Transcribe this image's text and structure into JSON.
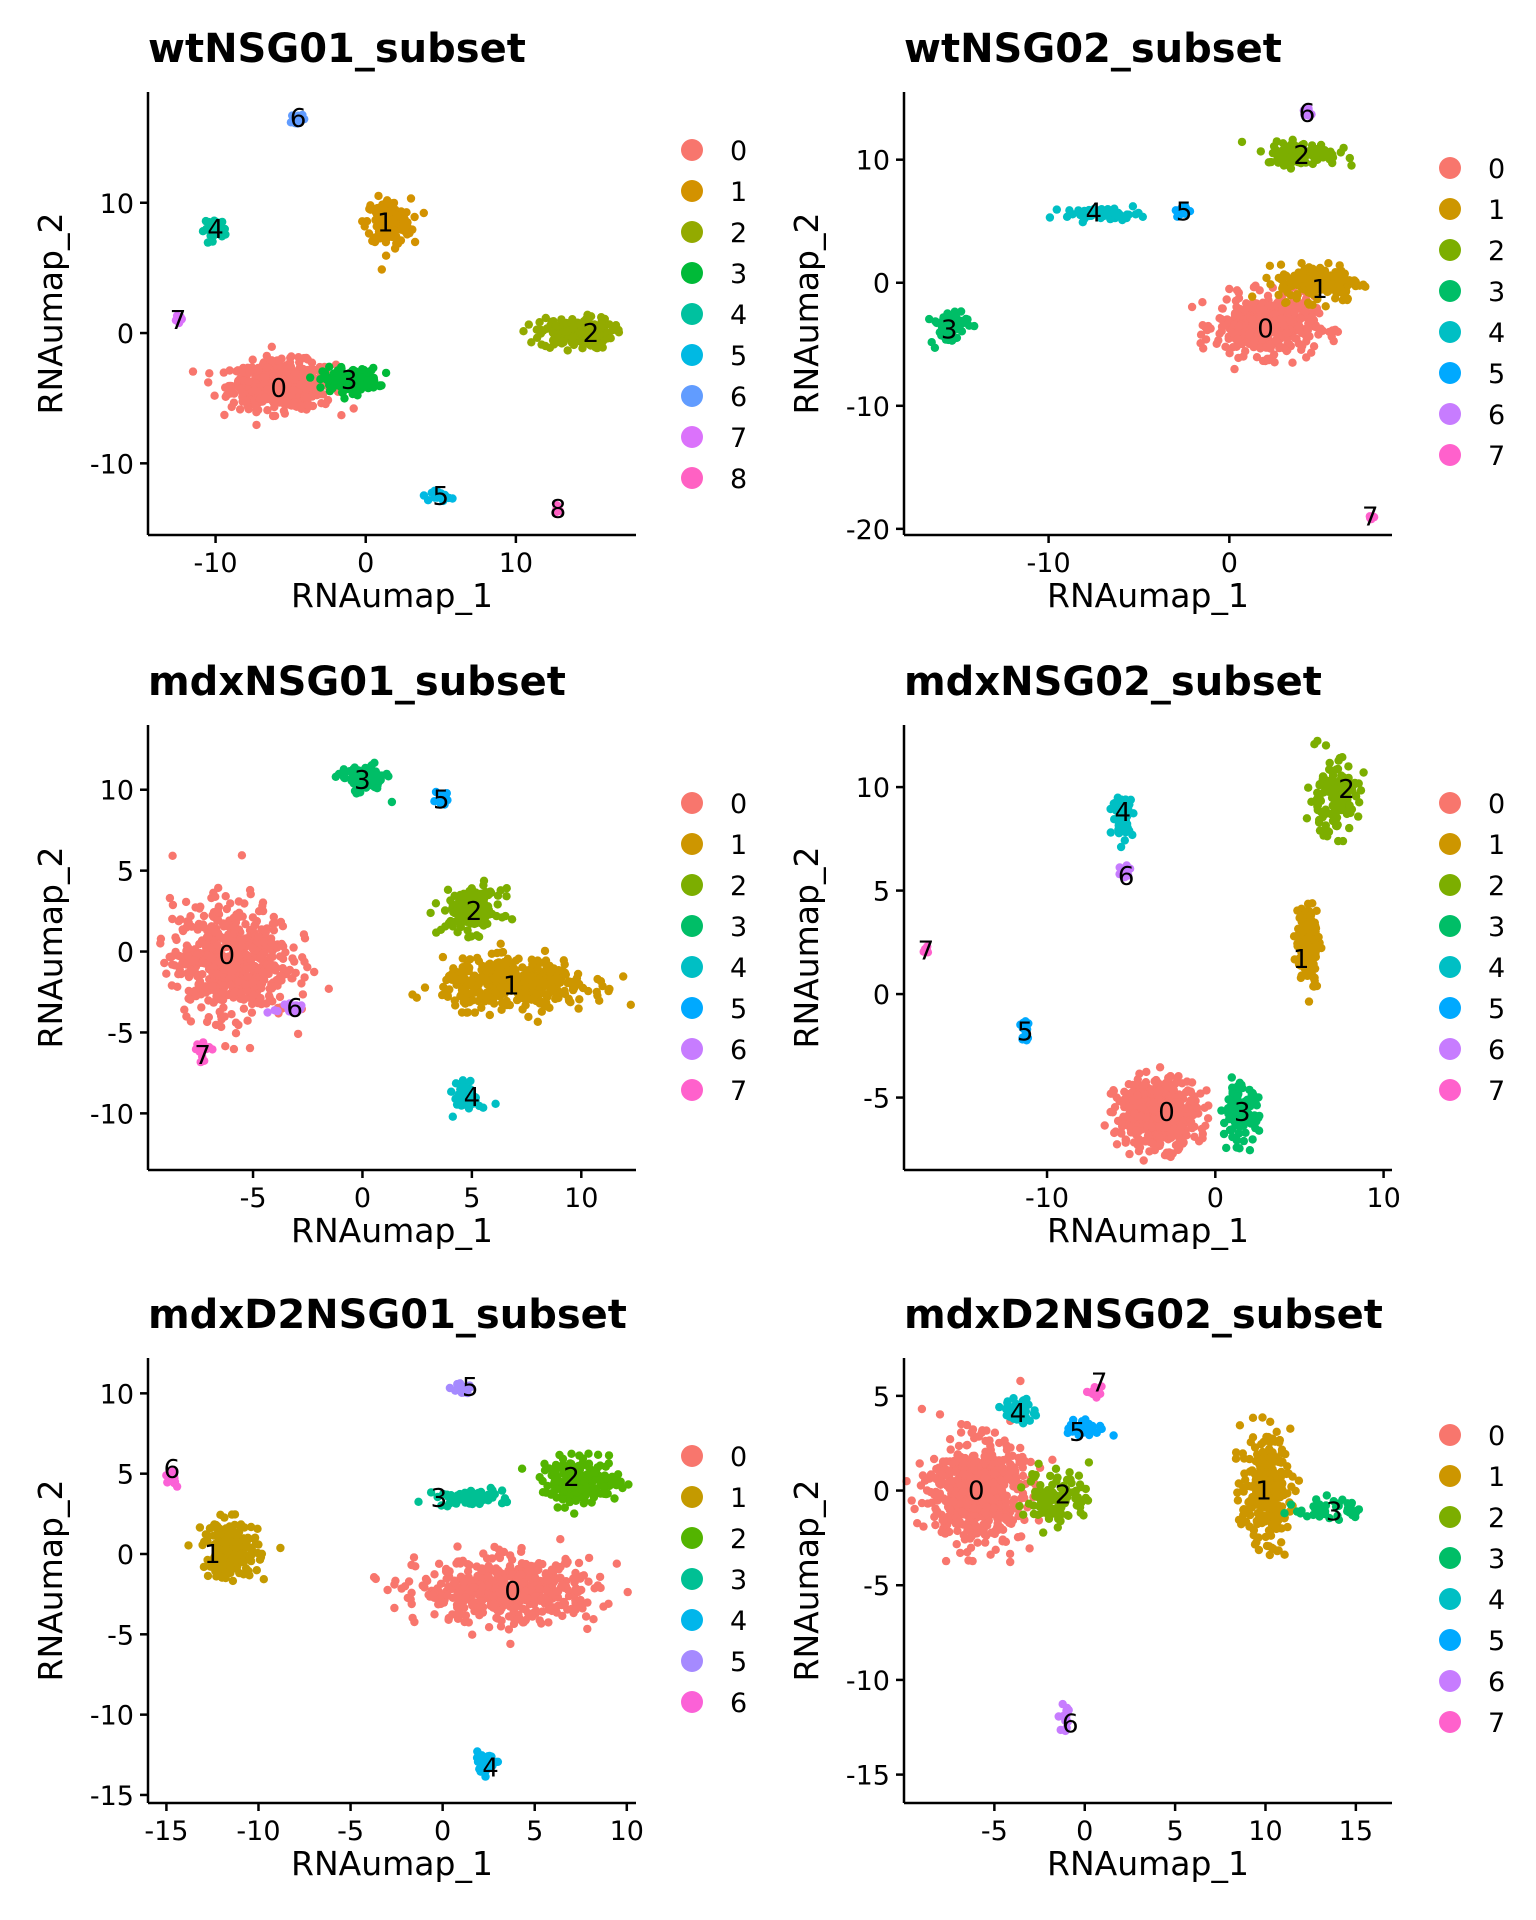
{
  "palette": {
    "c0": "#F8766D",
    "c1": "#CD9600",
    "c2": "#7CAE00",
    "c3": "#00BE67",
    "c4": "#00BFC4",
    "c5": "#00A9FF",
    "c6": "#C77CFF",
    "c7": "#FF61CC"
  },
  "chart_data": [
    {
      "type": "scatter",
      "title": "wtNSG01_subset",
      "xlabel": "RNAumap_1",
      "ylabel": "RNAumap_2",
      "xlim": [
        -14.5,
        18
      ],
      "ylim": [
        -15.5,
        18.5
      ],
      "xticks": [
        -10,
        0,
        10
      ],
      "yticks": [
        -10,
        0,
        10
      ],
      "legend": [
        "0",
        "1",
        "2",
        "3",
        "4",
        "5",
        "6",
        "7",
        "8"
      ],
      "legend_colors": [
        "#F8766D",
        "#D39200",
        "#93AA00",
        "#00BA38",
        "#00C19F",
        "#00B9E3",
        "#619CFF",
        "#DB72FB",
        "#FF61C3"
      ],
      "clusters": [
        {
          "label": "0",
          "x": -5.5,
          "y": -4,
          "sx": 2.3,
          "sy": 1.2,
          "n": 520,
          "cx": -5.8,
          "cy": -4.2
        },
        {
          "label": "1",
          "x": 1.5,
          "y": 8.5,
          "sx": 1.0,
          "sy": 1.2,
          "n": 160,
          "cx": 1.3,
          "cy": 8.5
        },
        {
          "label": "2",
          "x": 14,
          "y": 0,
          "sx": 1.6,
          "sy": 0.8,
          "n": 180,
          "cx": 15,
          "cy": 0
        },
        {
          "label": "3",
          "x": -1,
          "y": -3.6,
          "sx": 1.2,
          "sy": 0.6,
          "n": 160,
          "cx": -1.1,
          "cy": -3.6
        },
        {
          "label": "4",
          "x": -10,
          "y": 8,
          "sx": 0.5,
          "sy": 0.5,
          "n": 40,
          "cx": -10,
          "cy": 8
        },
        {
          "label": "5",
          "x": 5,
          "y": -12.5,
          "sx": 0.4,
          "sy": 0.25,
          "n": 30,
          "cx": 5,
          "cy": -12.5
        },
        {
          "label": "6",
          "x": -4.5,
          "y": 16.5,
          "sx": 0.3,
          "sy": 0.25,
          "n": 14,
          "cx": -4.5,
          "cy": 16.5
        },
        {
          "label": "7",
          "x": -12.5,
          "y": 1,
          "sx": 0.2,
          "sy": 0.2,
          "n": 10,
          "cx": -12.5,
          "cy": 1
        },
        {
          "label": "8",
          "x": 12.8,
          "y": -13.5,
          "sx": 0.2,
          "sy": 0.2,
          "n": 8,
          "cx": 12.8,
          "cy": -13.5
        }
      ]
    },
    {
      "type": "scatter",
      "title": "wtNSG02_subset",
      "xlabel": "RNAumap_1",
      "ylabel": "RNAumap_2",
      "xlim": [
        -18,
        9
      ],
      "ylim": [
        -20.5,
        15.5
      ],
      "xticks": [
        -10,
        0
      ],
      "yticks": [
        -20,
        -10,
        0,
        10
      ],
      "legend": [
        "0",
        "1",
        "2",
        "3",
        "4",
        "5",
        "6",
        "7"
      ],
      "clusters": [
        {
          "label": "0",
          "x": 2,
          "y": -3.5,
          "sx": 1.8,
          "sy": 1.6,
          "n": 480,
          "cx": 2,
          "cy": -3.7
        },
        {
          "label": "1",
          "x": 5,
          "y": 0,
          "sx": 1.5,
          "sy": 1.0,
          "n": 180,
          "cx": 5,
          "cy": -0.5
        },
        {
          "label": "2",
          "x": 4,
          "y": 10.5,
          "sx": 1.3,
          "sy": 0.6,
          "n": 130,
          "cx": 4,
          "cy": 10.4
        },
        {
          "label": "3",
          "x": -15.5,
          "y": -3.5,
          "sx": 0.7,
          "sy": 1.0,
          "n": 60,
          "cx": -15.5,
          "cy": -3.8
        },
        {
          "label": "4",
          "x": -7,
          "y": 5.6,
          "sx": 1.4,
          "sy": 0.3,
          "n": 60,
          "cx": -7.5,
          "cy": 5.7
        },
        {
          "label": "5",
          "x": -2.5,
          "y": 5.8,
          "sx": 0.25,
          "sy": 0.35,
          "n": 20,
          "cx": -2.5,
          "cy": 5.8
        },
        {
          "label": "6",
          "x": 4.3,
          "y": 13.8,
          "sx": 0.2,
          "sy": 0.25,
          "n": 10,
          "cx": 4.3,
          "cy": 13.8
        },
        {
          "label": "7",
          "x": 7.8,
          "y": -19,
          "sx": 0.15,
          "sy": 0.15,
          "n": 8,
          "cx": 7.8,
          "cy": -19
        }
      ]
    },
    {
      "type": "scatter",
      "title": "mdxNSG01_subset",
      "xlabel": "RNAumap_1",
      "ylabel": "RNAumap_2",
      "xlim": [
        -9.8,
        12.5
      ],
      "ylim": [
        -13.5,
        14
      ],
      "xticks": [
        -5,
        0,
        5,
        10
      ],
      "yticks": [
        -10,
        -5,
        0,
        5,
        10
      ],
      "legend": [
        "0",
        "1",
        "2",
        "3",
        "4",
        "5",
        "6",
        "7"
      ],
      "clusters": [
        {
          "label": "0",
          "x": -6,
          "y": -0.5,
          "sx": 1.8,
          "sy": 2.4,
          "n": 560,
          "cx": -6.2,
          "cy": -0.2
        },
        {
          "label": "1",
          "x": 7,
          "y": -2,
          "sx": 2.2,
          "sy": 1.0,
          "n": 420,
          "cx": 6.8,
          "cy": -2.1
        },
        {
          "label": "2",
          "x": 5,
          "y": 2.5,
          "sx": 0.9,
          "sy": 0.9,
          "n": 150,
          "cx": 5.1,
          "cy": 2.5
        },
        {
          "label": "3",
          "x": 0,
          "y": 10.6,
          "sx": 0.7,
          "sy": 0.6,
          "n": 80,
          "cx": 0,
          "cy": 10.6
        },
        {
          "label": "4",
          "x": 4.8,
          "y": -9,
          "sx": 0.4,
          "sy": 0.6,
          "n": 50,
          "cx": 5,
          "cy": -9
        },
        {
          "label": "5",
          "x": 3.7,
          "y": 9.5,
          "sx": 0.2,
          "sy": 0.3,
          "n": 16,
          "cx": 3.6,
          "cy": 9.4
        },
        {
          "label": "6",
          "x": -3.3,
          "y": -3.5,
          "sx": 0.5,
          "sy": 0.3,
          "n": 30,
          "cx": -3.1,
          "cy": -3.5
        },
        {
          "label": "7",
          "x": -7.3,
          "y": -6.2,
          "sx": 0.3,
          "sy": 0.3,
          "n": 14,
          "cx": -7.3,
          "cy": -6.4
        }
      ]
    },
    {
      "type": "scatter",
      "title": "mdxNSG02_subset",
      "xlabel": "RNAumap_1",
      "ylabel": "RNAumap_2",
      "xlim": [
        -18.5,
        10.5
      ],
      "ylim": [
        -8.5,
        13
      ],
      "xticks": [
        -10,
        0,
        10
      ],
      "yticks": [
        -5,
        0,
        5,
        10
      ],
      "legend": [
        "0",
        "1",
        "2",
        "3",
        "4",
        "5",
        "6",
        "7"
      ],
      "clusters": [
        {
          "label": "0",
          "x": -3.5,
          "y": -5.8,
          "sx": 1.6,
          "sy": 1.1,
          "n": 480,
          "cx": -2.9,
          "cy": -5.7
        },
        {
          "label": "1",
          "x": 5.5,
          "y": 2.5,
          "sx": 0.45,
          "sy": 1.3,
          "n": 130,
          "cx": 5.1,
          "cy": 1.7
        },
        {
          "label": "2",
          "x": 7,
          "y": 9.5,
          "sx": 1.0,
          "sy": 1.2,
          "n": 140,
          "cx": 7.8,
          "cy": 9.9
        },
        {
          "label": "3",
          "x": 1.5,
          "y": -5.8,
          "sx": 0.7,
          "sy": 0.9,
          "n": 110,
          "cx": 1.6,
          "cy": -5.7
        },
        {
          "label": "4",
          "x": -5.5,
          "y": 8.6,
          "sx": 0.4,
          "sy": 0.6,
          "n": 60,
          "cx": -5.5,
          "cy": 8.8
        },
        {
          "label": "5",
          "x": -11.3,
          "y": -1.8,
          "sx": 0.2,
          "sy": 0.5,
          "n": 24,
          "cx": -11.3,
          "cy": -1.8
        },
        {
          "label": "6",
          "x": -5.3,
          "y": 5.9,
          "sx": 0.3,
          "sy": 0.3,
          "n": 14,
          "cx": -5.3,
          "cy": 5.7
        },
        {
          "label": "7",
          "x": -17.2,
          "y": 2.1,
          "sx": 0.15,
          "sy": 0.15,
          "n": 8,
          "cx": -17.2,
          "cy": 2.1
        }
      ]
    },
    {
      "type": "scatter",
      "title": "mdxD2NSG01_subset",
      "xlabel": "RNAumap_1",
      "ylabel": "RNAumap_2",
      "xlim": [
        -16,
        10.5
      ],
      "ylim": [
        -15.5,
        12.2
      ],
      "xticks": [
        -15,
        -10,
        -5,
        0,
        5,
        10
      ],
      "yticks": [
        -15,
        -10,
        -5,
        0,
        5,
        10
      ],
      "legend": [
        "0",
        "1",
        "2",
        "3",
        "4",
        "5",
        "6"
      ],
      "legend_colors": [
        "#F8766D",
        "#C49A00",
        "#53B400",
        "#00C094",
        "#00B6EB",
        "#A58AFF",
        "#FB61D7"
      ],
      "clusters": [
        {
          "label": "0",
          "x": 3.5,
          "y": -2.3,
          "sx": 3.2,
          "sy": 1.3,
          "n": 520,
          "cx": 3.8,
          "cy": -2.3
        },
        {
          "label": "1",
          "x": -11.5,
          "y": 0.3,
          "sx": 1.0,
          "sy": 1.2,
          "n": 200,
          "cx": -12.5,
          "cy": 0
        },
        {
          "label": "2",
          "x": 7.5,
          "y": 4.5,
          "sx": 1.4,
          "sy": 0.9,
          "n": 200,
          "cx": 7,
          "cy": 4.8
        },
        {
          "label": "3",
          "x": 1.5,
          "y": 3.5,
          "sx": 1.2,
          "sy": 0.35,
          "n": 60,
          "cx": -0.2,
          "cy": 3.5
        },
        {
          "label": "4",
          "x": 2.3,
          "y": -13,
          "sx": 0.5,
          "sy": 0.4,
          "n": 40,
          "cx": 2.6,
          "cy": -13.3
        },
        {
          "label": "5",
          "x": 1.1,
          "y": 10.3,
          "sx": 0.4,
          "sy": 0.25,
          "n": 14,
          "cx": 1.5,
          "cy": 10.4
        },
        {
          "label": "6",
          "x": -14.6,
          "y": 4.7,
          "sx": 0.2,
          "sy": 0.5,
          "n": 12,
          "cx": -14.7,
          "cy": 5.3
        }
      ]
    },
    {
      "type": "scatter",
      "title": "mdxD2NSG02_subset",
      "xlabel": "RNAumap_1",
      "ylabel": "RNAumap_2",
      "xlim": [
        -10,
        17
      ],
      "ylim": [
        -16.5,
        7
      ],
      "xticks": [
        -5,
        0,
        5,
        10,
        15
      ],
      "yticks": [
        -15,
        -10,
        -5,
        0,
        5
      ],
      "legend": [
        "0",
        "1",
        "2",
        "3",
        "4",
        "5",
        "6",
        "7"
      ],
      "clusters": [
        {
          "label": "0",
          "x": -6,
          "y": 0,
          "sx": 1.7,
          "sy": 1.8,
          "n": 620,
          "cx": -6,
          "cy": 0
        },
        {
          "label": "1",
          "x": 10,
          "y": 0,
          "sx": 0.9,
          "sy": 2.0,
          "n": 240,
          "cx": 9.9,
          "cy": 0
        },
        {
          "label": "2",
          "x": -1.5,
          "y": -0.3,
          "sx": 1.2,
          "sy": 1.0,
          "n": 100,
          "cx": -1.2,
          "cy": -0.2
        },
        {
          "label": "3",
          "x": 13.5,
          "y": -1,
          "sx": 1.2,
          "sy": 0.4,
          "n": 40,
          "cx": 13.8,
          "cy": -1.1
        },
        {
          "label": "4",
          "x": -3.6,
          "y": 4.2,
          "sx": 0.6,
          "sy": 0.4,
          "n": 60,
          "cx": -3.7,
          "cy": 4.1
        },
        {
          "label": "5",
          "x": 0,
          "y": 3.3,
          "sx": 0.9,
          "sy": 0.3,
          "n": 30,
          "cx": -0.4,
          "cy": 3.1
        },
        {
          "label": "6",
          "x": -1,
          "y": -12,
          "sx": 0.2,
          "sy": 0.5,
          "n": 16,
          "cx": -0.8,
          "cy": -12.3
        },
        {
          "label": "7",
          "x": 0.5,
          "y": 5.2,
          "sx": 0.3,
          "sy": 0.3,
          "n": 12,
          "cx": 0.8,
          "cy": 5.7
        }
      ]
    }
  ]
}
